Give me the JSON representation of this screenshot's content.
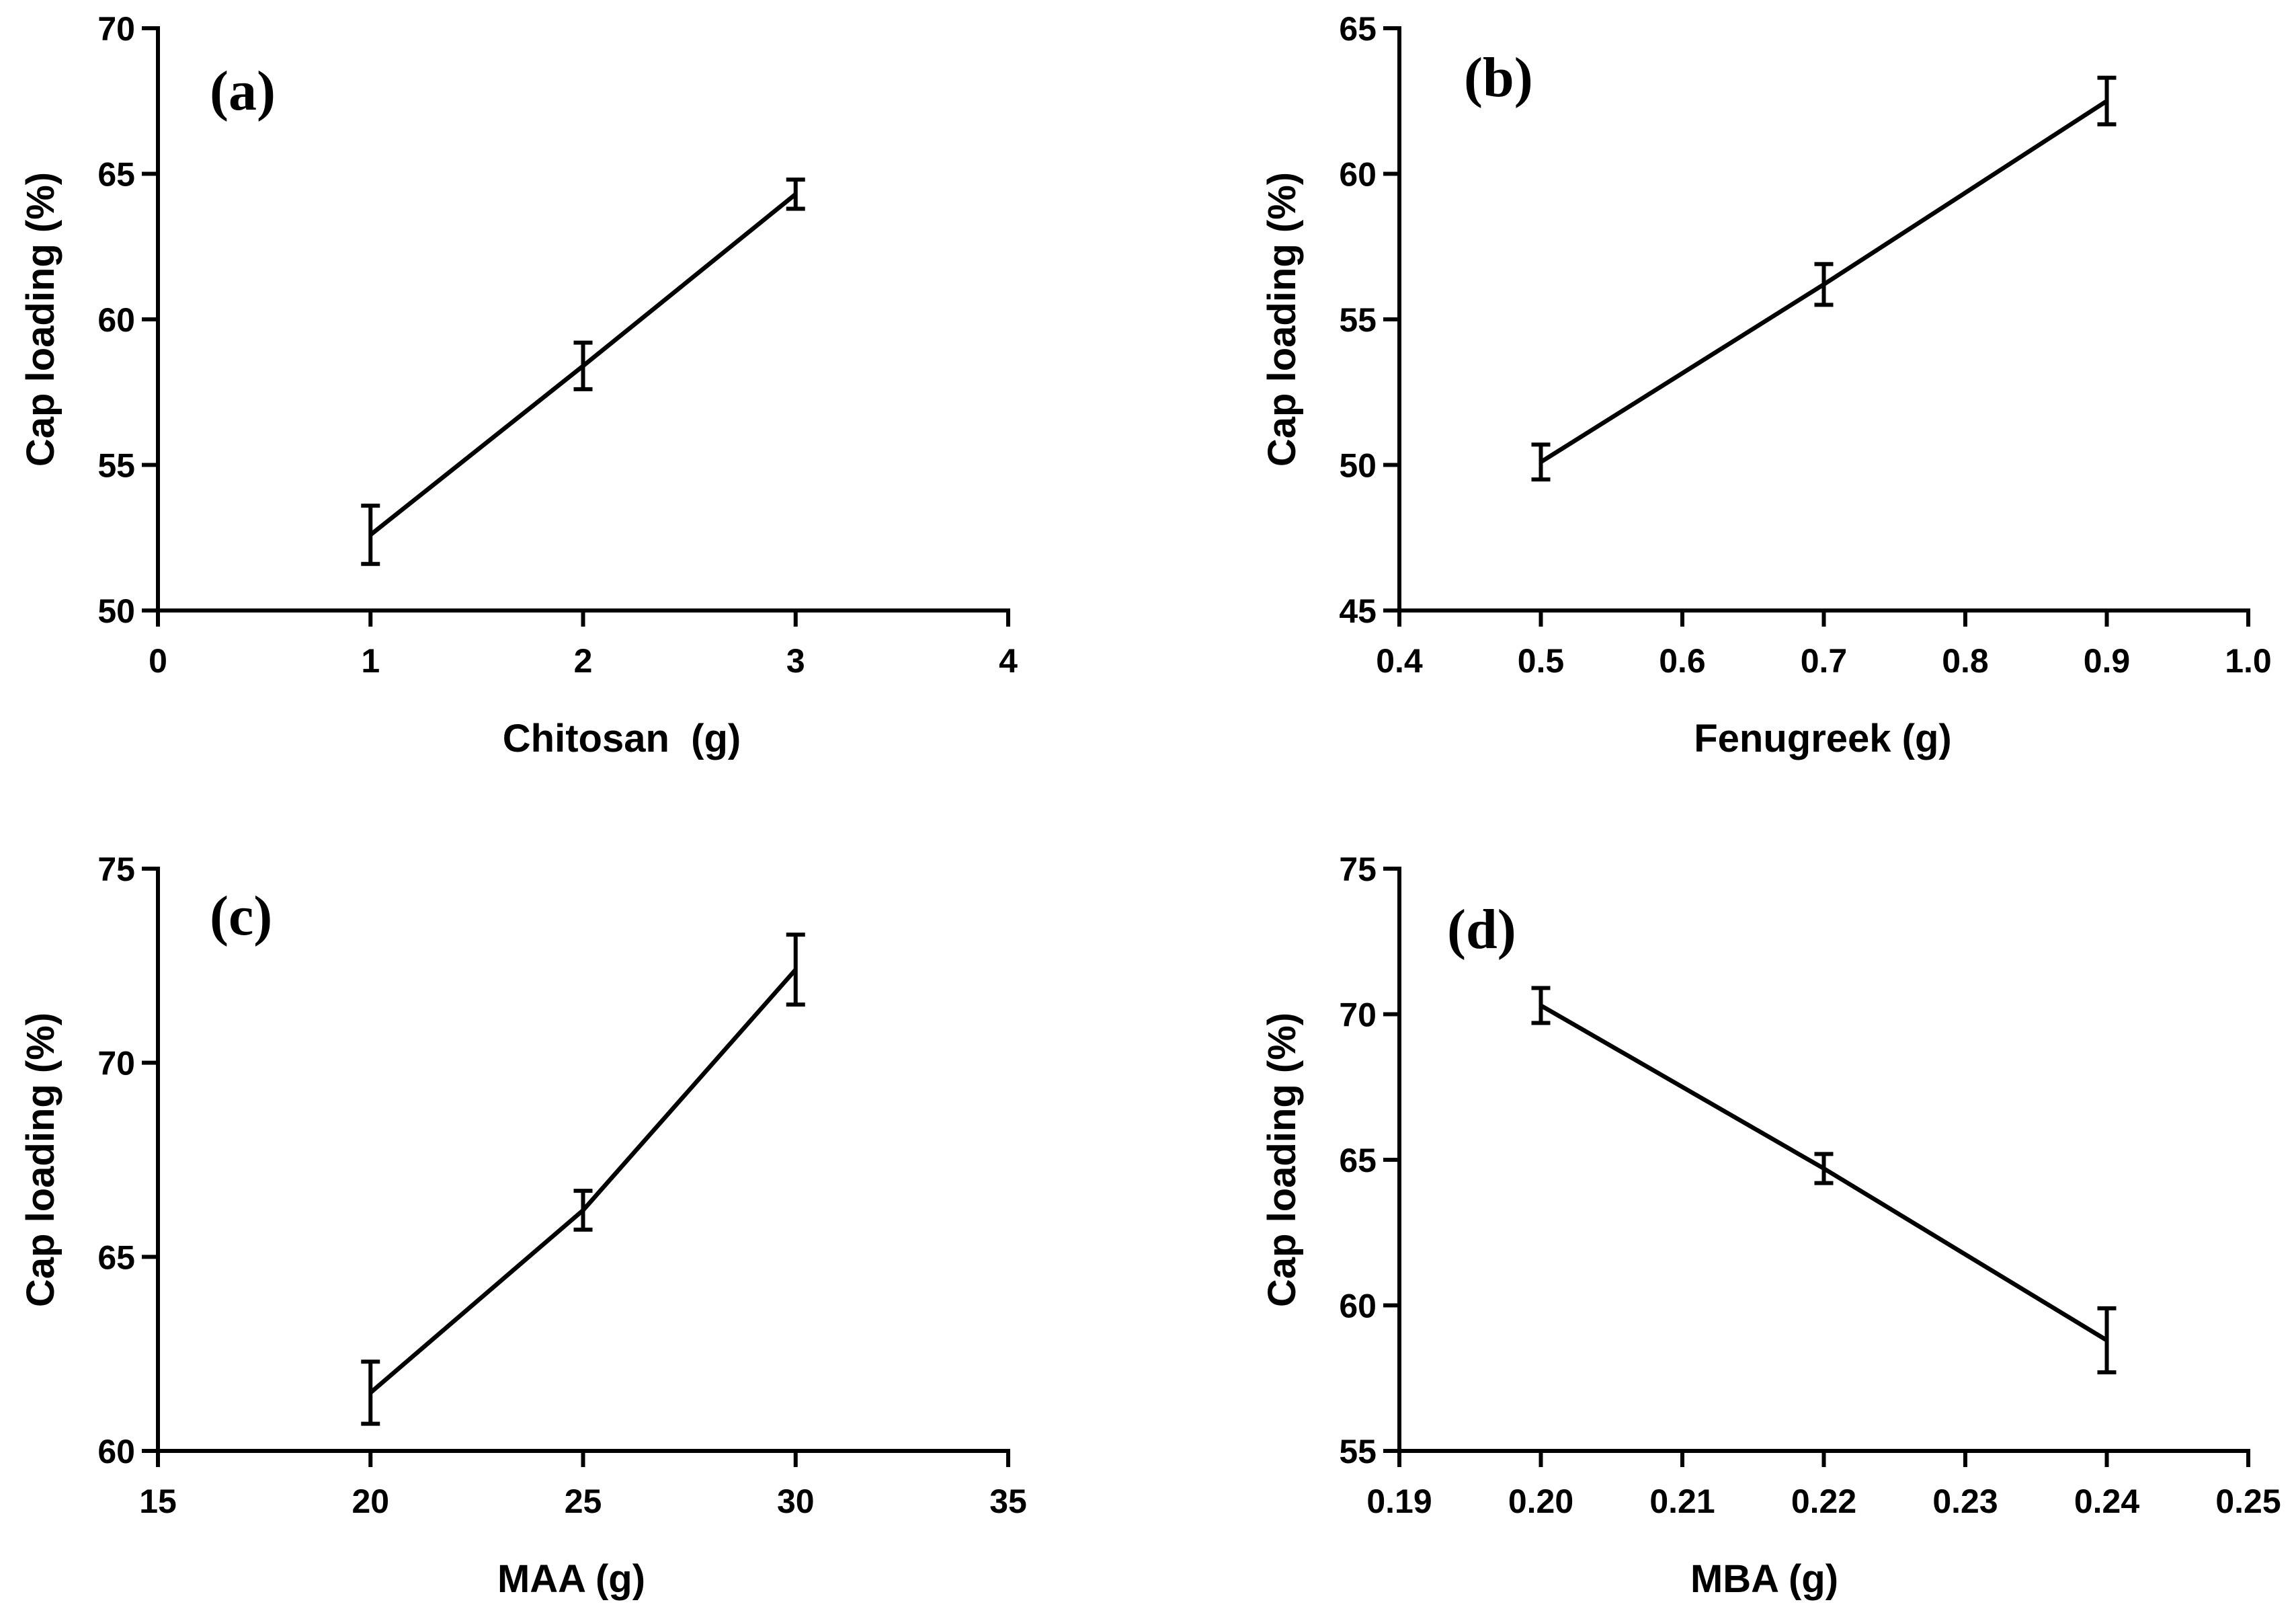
{
  "chart_data": [
    {
      "type": "line",
      "panel_label": "(a)",
      "xlabel": "Chitosan  (g)",
      "ylabel": "Cap loading (%)",
      "xlim": [
        0,
        4
      ],
      "ylim": [
        50,
        70
      ],
      "xticks": [
        0,
        1,
        2,
        3,
        4
      ],
      "yticks": [
        50,
        55,
        60,
        65,
        70
      ],
      "xtick_labels": [
        "0",
        "1",
        "2",
        "3",
        "4"
      ],
      "ytick_labels": [
        "50",
        "55",
        "60",
        "65",
        "70"
      ],
      "series": [
        {
          "x": [
            1,
            2,
            3
          ],
          "y": [
            52.6,
            58.4,
            64.3
          ],
          "err": [
            1.0,
            0.8,
            0.5
          ]
        }
      ]
    },
    {
      "type": "line",
      "panel_label": "(b)",
      "xlabel": "Fenugreek (g)",
      "ylabel": "Cap loading (%)",
      "xlim": [
        0.4,
        1.0
      ],
      "ylim": [
        45,
        65
      ],
      "xticks": [
        0.4,
        0.5,
        0.6,
        0.7,
        0.8,
        0.9,
        1.0
      ],
      "yticks": [
        45,
        50,
        55,
        60,
        65
      ],
      "xtick_labels": [
        "0.4",
        "0.5",
        "0.6",
        "0.7",
        "0.8",
        "0.9",
        "1.0"
      ],
      "ytick_labels": [
        "45",
        "50",
        "55",
        "60",
        "65"
      ],
      "series": [
        {
          "x": [
            0.5,
            0.7,
            0.9
          ],
          "y": [
            50.1,
            56.2,
            62.5
          ],
          "err": [
            0.6,
            0.7,
            0.8
          ]
        }
      ]
    },
    {
      "type": "line",
      "panel_label": "(c)",
      "xlabel": "MAA (g)",
      "ylabel": "Cap loading (%)",
      "xlim": [
        15,
        35
      ],
      "ylim": [
        60,
        75
      ],
      "xticks": [
        15,
        20,
        25,
        30,
        35
      ],
      "yticks": [
        60,
        65,
        70,
        75
      ],
      "xtick_labels": [
        "15",
        "20",
        "25",
        "30",
        "35"
      ],
      "ytick_labels": [
        "60",
        "65",
        "70",
        "75"
      ],
      "series": [
        {
          "x": [
            20,
            25,
            30
          ],
          "y": [
            61.5,
            66.2,
            72.4
          ],
          "err": [
            0.8,
            0.5,
            0.9
          ]
        }
      ]
    },
    {
      "type": "line",
      "panel_label": "(d)",
      "xlabel": "MBA (g)",
      "ylabel": "Cap loading (%)",
      "xlim": [
        0.19,
        0.25
      ],
      "ylim": [
        55,
        75
      ],
      "xticks": [
        0.19,
        0.2,
        0.21,
        0.22,
        0.23,
        0.24,
        0.25
      ],
      "yticks": [
        55,
        60,
        65,
        70,
        75
      ],
      "xtick_labels": [
        "0.19",
        "0.20",
        "0.21",
        "0.22",
        "0.23",
        "0.24",
        "0.25"
      ],
      "ytick_labels": [
        "55",
        "60",
        "65",
        "70",
        "75"
      ],
      "series": [
        {
          "x": [
            0.2,
            0.22,
            0.24
          ],
          "y": [
            70.3,
            64.7,
            58.8
          ],
          "err": [
            0.6,
            0.5,
            1.1
          ]
        }
      ]
    }
  ]
}
